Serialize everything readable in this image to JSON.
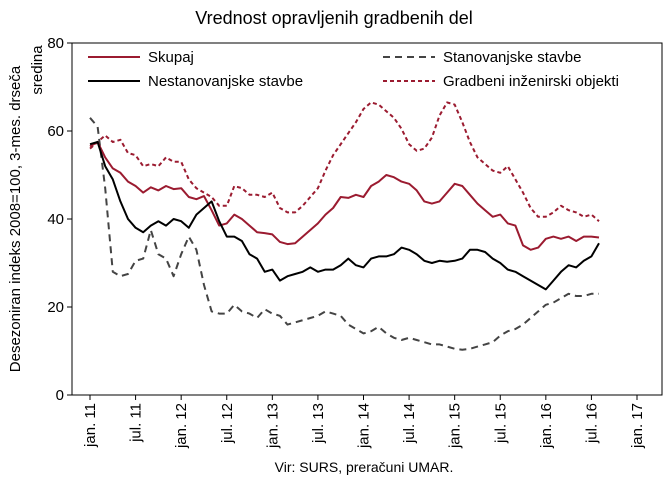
{
  "chart_data": {
    "type": "line",
    "title": "Vrednost opravljenih gradbenih del",
    "ylabel_lines": [
      "Desezoniran indeks 2008=100, 3-mes. drseča",
      "sredina"
    ],
    "source": "Vir: SURS, preračuni UMAR.",
    "ylim": [
      0,
      80
    ],
    "yticks": [
      0,
      20,
      40,
      60,
      80
    ],
    "grid": false,
    "legend_position": "top",
    "x_start": "2011-01",
    "x_end": "2017-01",
    "x_tick_labels": [
      {
        "month_index": 0,
        "label": "jan. 11"
      },
      {
        "month_index": 6,
        "label": "jul. 11"
      },
      {
        "month_index": 12,
        "label": "jan. 12"
      },
      {
        "month_index": 18,
        "label": "jul. 12"
      },
      {
        "month_index": 24,
        "label": "jan. 13"
      },
      {
        "month_index": 30,
        "label": "jul. 13"
      },
      {
        "month_index": 36,
        "label": "jan. 14"
      },
      {
        "month_index": 42,
        "label": "jul. 14"
      },
      {
        "month_index": 48,
        "label": "jan. 15"
      },
      {
        "month_index": 54,
        "label": "jul. 15"
      },
      {
        "month_index": 60,
        "label": "jan. 16"
      },
      {
        "month_index": 66,
        "label": "jul. 16"
      },
      {
        "month_index": 72,
        "label": "jan. 17"
      }
    ],
    "series": [
      {
        "name": "Skupaj",
        "color": "#9b1b30",
        "dash": "solid",
        "values": [
          56.5,
          57.5,
          54,
          51.5,
          50.5,
          48.5,
          47.5,
          46,
          47.2,
          46.5,
          47.5,
          46.8,
          47,
          45,
          44.5,
          45.2,
          42,
          38.5,
          39,
          41,
          40,
          38.5,
          37,
          36.8,
          36.5,
          34.8,
          34.3,
          34.5,
          36,
          37.5,
          39,
          41,
          42.5,
          45,
          44.8,
          45.5,
          45,
          47.5,
          48.5,
          50,
          49.5,
          48.5,
          48,
          46.5,
          44,
          43.5,
          44,
          46,
          48,
          47.5,
          45.5,
          43.5,
          42,
          40.5,
          41,
          39,
          38.5,
          34,
          33,
          33.5,
          35.5,
          36,
          35.5,
          36,
          35,
          36,
          36,
          35.8
        ]
      },
      {
        "name": "Nestanovanjske stavbe",
        "color": "#000000",
        "dash": "solid",
        "values": [
          57,
          57.5,
          52,
          49,
          44,
          40,
          38,
          37,
          38.5,
          39.5,
          38.5,
          40,
          39.5,
          38,
          41,
          42.5,
          44,
          39.5,
          36,
          36,
          35,
          32,
          31,
          28,
          28.5,
          26,
          27,
          27.5,
          28,
          29,
          28,
          28.5,
          28.5,
          29.5,
          31,
          29.5,
          29,
          31,
          31.5,
          31.5,
          32,
          33.5,
          33,
          32,
          30.5,
          30,
          30.5,
          30.3,
          30.5,
          31,
          33,
          33,
          32.5,
          31,
          30,
          28.5,
          28,
          27,
          26,
          25,
          24,
          26,
          28,
          29.5,
          29,
          30.5,
          31.5,
          34.5
        ]
      },
      {
        "name": "Stanovanjske stavbe",
        "color": "#444444",
        "dash": "dashed",
        "values": [
          63,
          61,
          47,
          28,
          27,
          27.5,
          30.5,
          31,
          37.5,
          32,
          31,
          27,
          32,
          36,
          33,
          25,
          19,
          18.5,
          18.5,
          20.5,
          19,
          18.5,
          17.5,
          19.5,
          18.5,
          18,
          16,
          16.5,
          17,
          17.5,
          18,
          19,
          18.5,
          18,
          16,
          15,
          14,
          14.5,
          15.5,
          14,
          13,
          12.5,
          13,
          12.5,
          12,
          11.5,
          11.5,
          11,
          10.5,
          10.3,
          10.5,
          11,
          11.5,
          12,
          13.5,
          14.5,
          15,
          16,
          17.5,
          19,
          20.5,
          21,
          22,
          23,
          22.5,
          22.5,
          23,
          23
        ]
      },
      {
        "name": "Gradbeni inženirski objekti",
        "color": "#9b1b30",
        "dash": "dotted",
        "values": [
          56,
          57.5,
          59,
          57.5,
          58,
          55,
          54.5,
          52,
          52.5,
          52,
          54,
          53,
          53,
          49,
          47,
          46,
          45,
          43,
          43,
          47.5,
          47,
          45.5,
          45.5,
          45,
          46,
          42.5,
          41.5,
          41.5,
          43,
          45,
          47,
          51,
          54.5,
          57,
          59.5,
          62,
          65,
          66.5,
          66,
          64.5,
          63,
          60.5,
          57,
          55.5,
          56,
          58.5,
          63.5,
          66.5,
          66,
          62,
          57.5,
          54,
          52.5,
          51,
          50.5,
          52,
          49,
          46,
          42.5,
          40.5,
          40.5,
          41.5,
          43,
          42,
          41.5,
          40.5,
          41,
          39.5
        ]
      }
    ]
  }
}
